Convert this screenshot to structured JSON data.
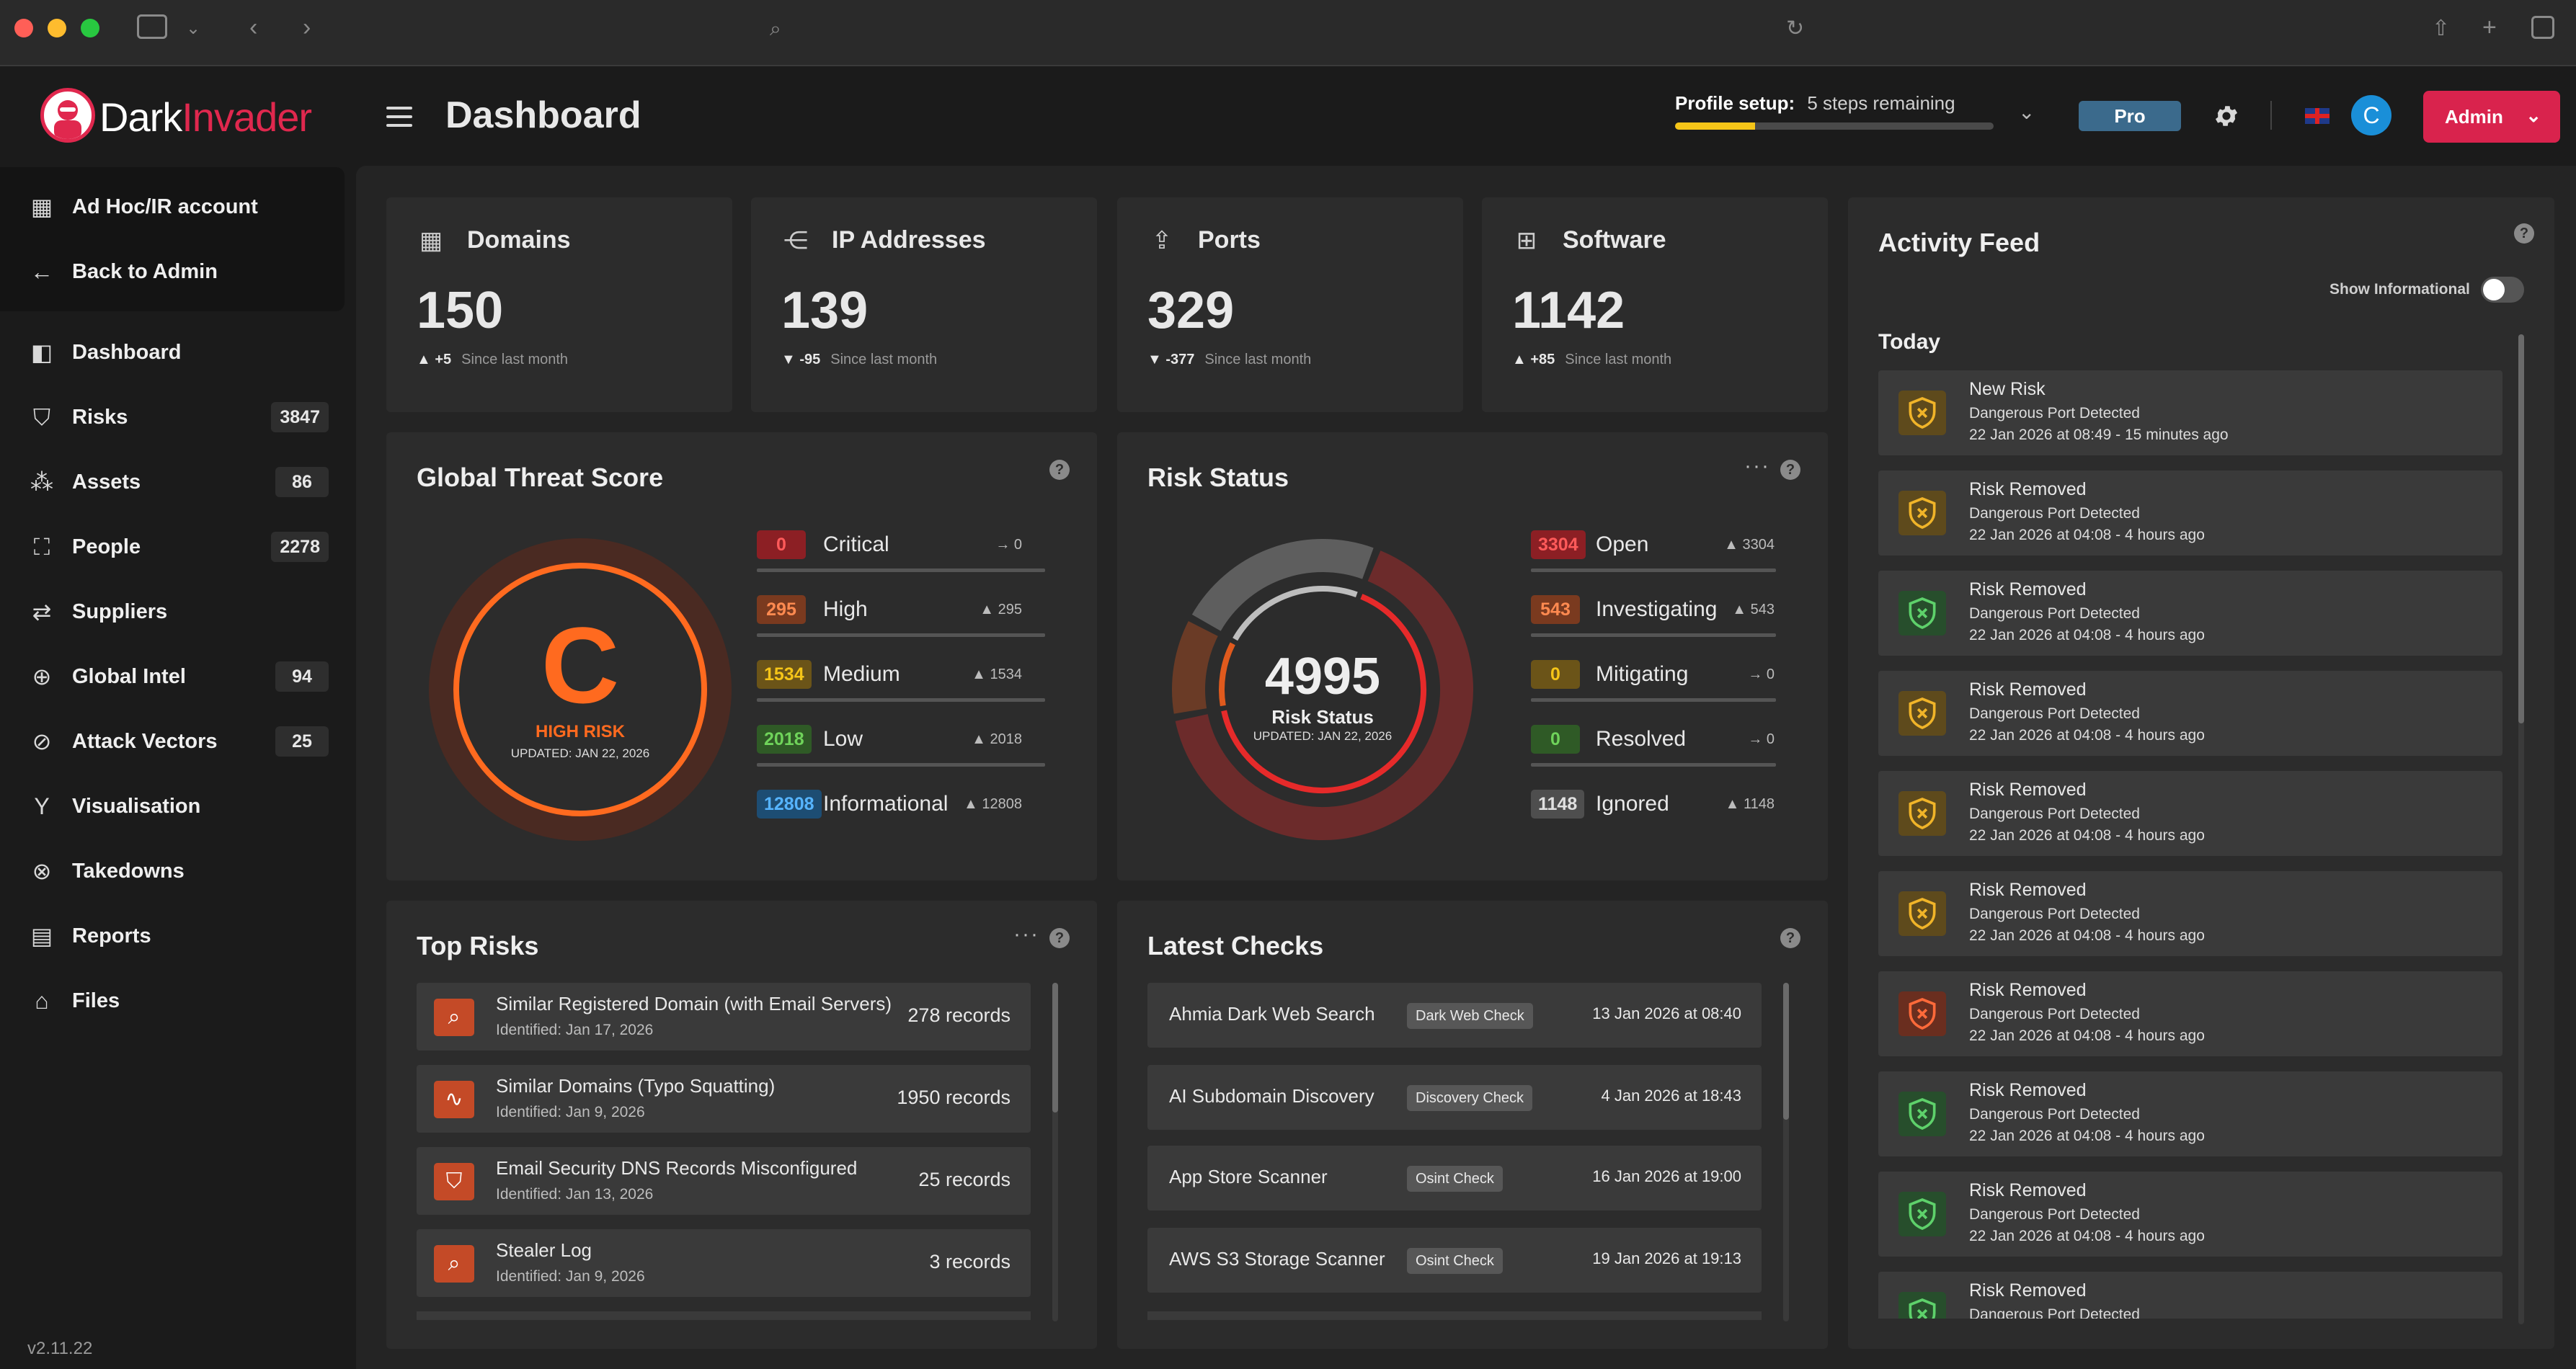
{
  "header": {
    "brand_part1": "Dark",
    "brand_part2": "Invader",
    "page_title": "Dashboard",
    "profile_label": "Profile setup:",
    "profile_remaining": "5 steps remaining",
    "profile_progress_pct": 25,
    "plan_badge": "Pro",
    "avatar_initial": "C",
    "admin_label": "Admin"
  },
  "sidebar": {
    "top_items": [
      {
        "label": "Ad Hoc/IR account",
        "icon": "building-icon"
      },
      {
        "label": "Back to Admin",
        "icon": "arrow-left-icon"
      }
    ],
    "items": [
      {
        "label": "Dashboard",
        "count": ""
      },
      {
        "label": "Risks",
        "count": "3847"
      },
      {
        "label": "Assets",
        "count": "86"
      },
      {
        "label": "People",
        "count": "2278"
      },
      {
        "label": "Suppliers",
        "count": ""
      },
      {
        "label": "Global Intel",
        "count": "94"
      },
      {
        "label": "Attack Vectors",
        "count": "25"
      },
      {
        "label": "Visualisation",
        "count": ""
      },
      {
        "label": "Takedowns",
        "count": ""
      },
      {
        "label": "Reports",
        "count": ""
      },
      {
        "label": "Files",
        "count": ""
      }
    ],
    "version": "v2.11.22"
  },
  "stats": [
    {
      "label": "Domains",
      "value": "150",
      "delta": "+5",
      "direction": "up",
      "since": "Since last month"
    },
    {
      "label": "IP Addresses",
      "value": "139",
      "delta": "-95",
      "direction": "down",
      "since": "Since last month"
    },
    {
      "label": "Ports",
      "value": "329",
      "delta": "-377",
      "direction": "down",
      "since": "Since last month"
    },
    {
      "label": "Software",
      "value": "1142",
      "delta": "+85",
      "direction": "up",
      "since": "Since last month"
    }
  ],
  "threat": {
    "title": "Global Threat Score",
    "grade": "C",
    "risk_label": "HIGH RISK",
    "updated": "UPDATED: JAN 22, 2026",
    "levels": [
      {
        "count": "0",
        "label": "Critical",
        "trend_arrow": "→",
        "trend": "0",
        "color": "#8c1f24",
        "text": "#ff5a5a"
      },
      {
        "count": "295",
        "label": "High",
        "trend_arrow": "▲",
        "trend": "295",
        "color": "#7a3a1f",
        "text": "#ff8a50"
      },
      {
        "count": "1534",
        "label": "Medium",
        "trend_arrow": "▲",
        "trend": "1534",
        "color": "#6b5418",
        "text": "#f5c518"
      },
      {
        "count": "2018",
        "label": "Low",
        "trend_arrow": "▲",
        "trend": "2018",
        "color": "#2f5a26",
        "text": "#6fd35a"
      },
      {
        "count": "12808",
        "label": "Informational",
        "trend_arrow": "▲",
        "trend": "12808",
        "color": "#1d4d73",
        "text": "#56b4ff"
      }
    ]
  },
  "risk_status": {
    "title": "Risk Status",
    "total": "4995",
    "label": "Risk Status",
    "updated": "UPDATED: JAN 22, 2026",
    "segments": [
      {
        "name": "Open",
        "value": 3304,
        "color": "#e62a2a"
      },
      {
        "name": "Investigating",
        "value": 543,
        "color": "#e05a1d"
      },
      {
        "name": "Ignored",
        "value": 1148,
        "color": "#bdbdbd"
      }
    ],
    "rows": [
      {
        "count": "3304",
        "label": "Open",
        "trend_arrow": "▲",
        "trend": "3304",
        "color": "#8c1f24",
        "text": "#ff5a5a"
      },
      {
        "count": "543",
        "label": "Investigating",
        "trend_arrow": "▲",
        "trend": "543",
        "color": "#7a3a1f",
        "text": "#ff8a50"
      },
      {
        "count": "0",
        "label": "Mitigating",
        "trend_arrow": "→",
        "trend": "0",
        "color": "#6b5418",
        "text": "#f5c518"
      },
      {
        "count": "0",
        "label": "Resolved",
        "trend_arrow": "→",
        "trend": "0",
        "color": "#2f5a26",
        "text": "#6fd35a"
      },
      {
        "count": "1148",
        "label": "Ignored",
        "trend_arrow": "▲",
        "trend": "1148",
        "color": "#4e4e4e",
        "text": "#e0e0e0"
      }
    ]
  },
  "top_risks": {
    "title": "Top Risks",
    "items": [
      {
        "title": "Similar Registered Domain (with Email Servers)",
        "identified": "Identified: Jan 17, 2026",
        "records": "278 records",
        "icon": "search-icon"
      },
      {
        "title": "Similar Domains (Typo Squatting)",
        "identified": "Identified: Jan 9, 2026",
        "records": "1950 records",
        "icon": "pulse-icon"
      },
      {
        "title": "Email Security DNS Records Misconfigured",
        "identified": "Identified: Jan 13, 2026",
        "records": "25 records",
        "icon": "shield-x-icon"
      },
      {
        "title": "Stealer Log",
        "identified": "Identified: Jan 9, 2026",
        "records": "3 records",
        "icon": "search-icon"
      }
    ]
  },
  "latest_checks": {
    "title": "Latest Checks",
    "items": [
      {
        "name": "Ahmia Dark Web Search",
        "tag": "Dark Web Check",
        "date": "13 Jan 2026 at 08:40"
      },
      {
        "name": "AI Subdomain Discovery",
        "tag": "Discovery Check",
        "date": "4 Jan 2026 at 18:43"
      },
      {
        "name": "App Store Scanner",
        "tag": "Osint Check",
        "date": "16 Jan 2026 at 19:00"
      },
      {
        "name": "AWS S3 Storage Scanner",
        "tag": "Osint Check",
        "date": "19 Jan 2026 at 19:13"
      }
    ]
  },
  "activity": {
    "title": "Activity Feed",
    "toggle_label": "Show Informational",
    "group": "Today",
    "items": [
      {
        "title": "New Risk",
        "sub": "Dangerous Port Detected",
        "time": "22 Jan 2026 at 08:49 - 15 minutes ago",
        "color": "#f0b429",
        "bg": "#5e4a1c"
      },
      {
        "title": "Risk Removed",
        "sub": "Dangerous Port Detected",
        "time": "22 Jan 2026 at 04:08 - 4 hours ago",
        "color": "#f0b429",
        "bg": "#5e4a1c"
      },
      {
        "title": "Risk Removed",
        "sub": "Dangerous Port Detected",
        "time": "22 Jan 2026 at 04:08 - 4 hours ago",
        "color": "#5ed16b",
        "bg": "#274e2c"
      },
      {
        "title": "Risk Removed",
        "sub": "Dangerous Port Detected",
        "time": "22 Jan 2026 at 04:08 - 4 hours ago",
        "color": "#f0b429",
        "bg": "#5e4a1c"
      },
      {
        "title": "Risk Removed",
        "sub": "Dangerous Port Detected",
        "time": "22 Jan 2026 at 04:08 - 4 hours ago",
        "color": "#f0b429",
        "bg": "#5e4a1c"
      },
      {
        "title": "Risk Removed",
        "sub": "Dangerous Port Detected",
        "time": "22 Jan 2026 at 04:08 - 4 hours ago",
        "color": "#f0b429",
        "bg": "#5e4a1c"
      },
      {
        "title": "Risk Removed",
        "sub": "Dangerous Port Detected",
        "time": "22 Jan 2026 at 04:08 - 4 hours ago",
        "color": "#ff6a3a",
        "bg": "#6a2e1f"
      },
      {
        "title": "Risk Removed",
        "sub": "Dangerous Port Detected",
        "time": "22 Jan 2026 at 04:08 - 4 hours ago",
        "color": "#5ed16b",
        "bg": "#274e2c"
      },
      {
        "title": "Risk Removed",
        "sub": "Dangerous Port Detected",
        "time": "22 Jan 2026 at 04:08 - 4 hours ago",
        "color": "#5ed16b",
        "bg": "#274e2c"
      },
      {
        "title": "Risk Removed",
        "sub": "Dangerous Port Detected",
        "time": "",
        "color": "#5ed16b",
        "bg": "#274e2c"
      }
    ]
  }
}
